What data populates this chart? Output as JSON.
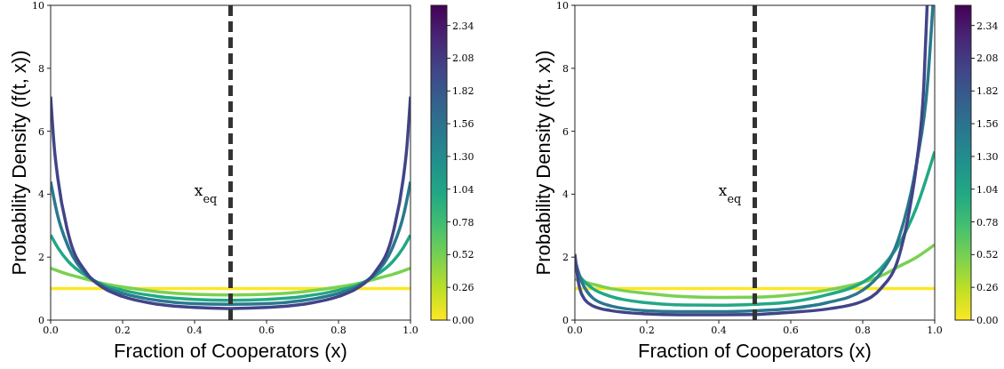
{
  "chart_data": [
    {
      "type": "line",
      "xlabel": "Fraction of Cooperators (x)",
      "ylabel": "Probability Density (f(t, x))",
      "xlim": [
        0,
        1
      ],
      "ylim": [
        0,
        10
      ],
      "xticks": [
        {
          "value": 0,
          "label": "0.0"
        },
        {
          "value": 0.2,
          "label": "0.2"
        },
        {
          "value": 0.4,
          "label": "0.4"
        },
        {
          "value": 0.6,
          "label": "0.6"
        },
        {
          "value": 0.8,
          "label": "0.8"
        },
        {
          "value": 1,
          "label": "1.0"
        }
      ],
      "yticks": [
        0,
        2,
        4,
        6,
        8,
        10
      ],
      "clim": [
        0,
        2.5
      ],
      "cticks": [
        {
          "value": 0,
          "label": "0.00"
        },
        {
          "value": 0.26,
          "label": "0.26"
        },
        {
          "value": 0.52,
          "label": "0.52"
        },
        {
          "value": 0.78,
          "label": "0.78"
        },
        {
          "value": 1.04,
          "label": "1.04"
        },
        {
          "value": 1.3,
          "label": "1.30"
        },
        {
          "value": 1.56,
          "label": "1.56"
        },
        {
          "value": 1.82,
          "label": "1.82"
        },
        {
          "value": 2.08,
          "label": "2.08"
        },
        {
          "value": 2.34,
          "label": "2.34"
        }
      ],
      "ref_lines": [
        {
          "axis": "x",
          "value": 0.5,
          "color": "#333333",
          "line_style": "dashed"
        }
      ],
      "annotations": [
        "x$_{eq}$"
      ],
      "series": [
        {
          "color": "#fde725",
          "x": [
            0,
            1
          ],
          "values": [
            1,
            1
          ]
        },
        {
          "color": "#7ad151",
          "x": [
            0,
            0.05,
            0.1,
            0.15,
            0.2,
            0.3,
            0.4,
            0.5,
            0.6,
            0.7,
            0.8,
            0.85,
            0.9,
            0.95,
            1
          ],
          "values": [
            1.65,
            1.45,
            1.3,
            1.15,
            1.05,
            0.9,
            0.82,
            0.8,
            0.82,
            0.9,
            1.05,
            1.15,
            1.3,
            1.45,
            1.65
          ]
        },
        {
          "color": "#22a884",
          "x": [
            0,
            0.02,
            0.05,
            0.1,
            0.15,
            0.2,
            0.3,
            0.4,
            0.5,
            0.6,
            0.7,
            0.8,
            0.85,
            0.9,
            0.95,
            0.98,
            1
          ],
          "values": [
            2.7,
            2.3,
            1.85,
            1.4,
            1.1,
            0.95,
            0.75,
            0.66,
            0.63,
            0.66,
            0.75,
            0.95,
            1.1,
            1.4,
            1.85,
            2.3,
            2.7
          ]
        },
        {
          "color": "#2a788e",
          "x": [
            0,
            0.02,
            0.05,
            0.1,
            0.15,
            0.2,
            0.3,
            0.4,
            0.5,
            0.6,
            0.7,
            0.8,
            0.85,
            0.9,
            0.95,
            0.98,
            1
          ],
          "values": [
            4.4,
            3.3,
            2.3,
            1.45,
            1.05,
            0.85,
            0.62,
            0.52,
            0.5,
            0.52,
            0.62,
            0.85,
            1.05,
            1.45,
            2.3,
            3.3,
            4.4
          ]
        },
        {
          "color": "#414487",
          "x": [
            0,
            0.01,
            0.02,
            0.05,
            0.1,
            0.15,
            0.2,
            0.3,
            0.4,
            0.5,
            0.6,
            0.7,
            0.8,
            0.85,
            0.9,
            0.95,
            0.98,
            0.99,
            1
          ],
          "values": [
            7.1,
            5.5,
            4.5,
            2.7,
            1.5,
            1.0,
            0.75,
            0.5,
            0.4,
            0.37,
            0.4,
            0.5,
            0.75,
            1.0,
            1.5,
            2.7,
            4.5,
            5.5,
            7.1
          ]
        }
      ]
    },
    {
      "type": "line",
      "xlabel": "Fraction of Cooperators (x)",
      "ylabel": "Probability Density (f(t, x))",
      "xlim": [
        0,
        1
      ],
      "ylim": [
        0,
        10
      ],
      "xticks": [
        {
          "value": 0,
          "label": "0.0"
        },
        {
          "value": 0.2,
          "label": "0.2"
        },
        {
          "value": 0.4,
          "label": "0.4"
        },
        {
          "value": 0.6,
          "label": "0.6"
        },
        {
          "value": 0.8,
          "label": "0.8"
        },
        {
          "value": 1,
          "label": "1.0"
        }
      ],
      "yticks": [
        0,
        2,
        4,
        6,
        8,
        10
      ],
      "clim": [
        0,
        2.5
      ],
      "cticks": [
        {
          "value": 0,
          "label": "0.00"
        },
        {
          "value": 0.26,
          "label": "0.26"
        },
        {
          "value": 0.52,
          "label": "0.52"
        },
        {
          "value": 0.78,
          "label": "0.78"
        },
        {
          "value": 1.04,
          "label": "1.04"
        },
        {
          "value": 1.3,
          "label": "1.30"
        },
        {
          "value": 1.56,
          "label": "1.56"
        },
        {
          "value": 1.82,
          "label": "1.82"
        },
        {
          "value": 2.08,
          "label": "2.08"
        },
        {
          "value": 2.34,
          "label": "2.34"
        }
      ],
      "ref_lines": [
        {
          "axis": "x",
          "value": 0.5,
          "color": "#333333",
          "line_style": "dashed"
        }
      ],
      "annotations": [
        "x$_{eq}$"
      ],
      "series": [
        {
          "color": "#fde725",
          "x": [
            0,
            1
          ],
          "values": [
            1,
            1
          ]
        },
        {
          "color": "#7ad151",
          "x": [
            0,
            0.1,
            0.2,
            0.3,
            0.4,
            0.5,
            0.6,
            0.7,
            0.8,
            0.85,
            0.9,
            0.95,
            1
          ],
          "values": [
            1.3,
            1.0,
            0.85,
            0.75,
            0.72,
            0.73,
            0.8,
            0.95,
            1.2,
            1.4,
            1.7,
            2.0,
            2.4
          ]
        },
        {
          "color": "#22a884",
          "x": [
            0,
            0.02,
            0.05,
            0.1,
            0.2,
            0.3,
            0.4,
            0.5,
            0.6,
            0.7,
            0.8,
            0.85,
            0.9,
            0.95,
            1
          ],
          "values": [
            1.6,
            1.3,
            1.0,
            0.75,
            0.55,
            0.48,
            0.47,
            0.5,
            0.58,
            0.8,
            1.2,
            1.65,
            2.4,
            3.6,
            5.35
          ]
        },
        {
          "color": "#2a788e",
          "x": [
            0,
            0.02,
            0.05,
            0.1,
            0.2,
            0.3,
            0.4,
            0.5,
            0.6,
            0.7,
            0.8,
            0.85,
            0.9,
            0.95,
            0.98,
            0.995
          ],
          "values": [
            1.9,
            1.2,
            0.7,
            0.45,
            0.3,
            0.27,
            0.27,
            0.3,
            0.37,
            0.55,
            0.95,
            1.5,
            2.6,
            5.0,
            7.5,
            10
          ]
        },
        {
          "color": "#414487",
          "x": [
            0,
            0.01,
            0.02,
            0.05,
            0.1,
            0.2,
            0.3,
            0.4,
            0.5,
            0.6,
            0.7,
            0.8,
            0.85,
            0.9,
            0.93,
            0.95,
            0.97,
            0.979
          ],
          "values": [
            2.1,
            1.2,
            0.8,
            0.45,
            0.3,
            0.2,
            0.17,
            0.17,
            0.18,
            0.25,
            0.35,
            0.6,
            1.0,
            2.0,
            3.5,
            5.0,
            7.5,
            10
          ]
        }
      ]
    }
  ]
}
